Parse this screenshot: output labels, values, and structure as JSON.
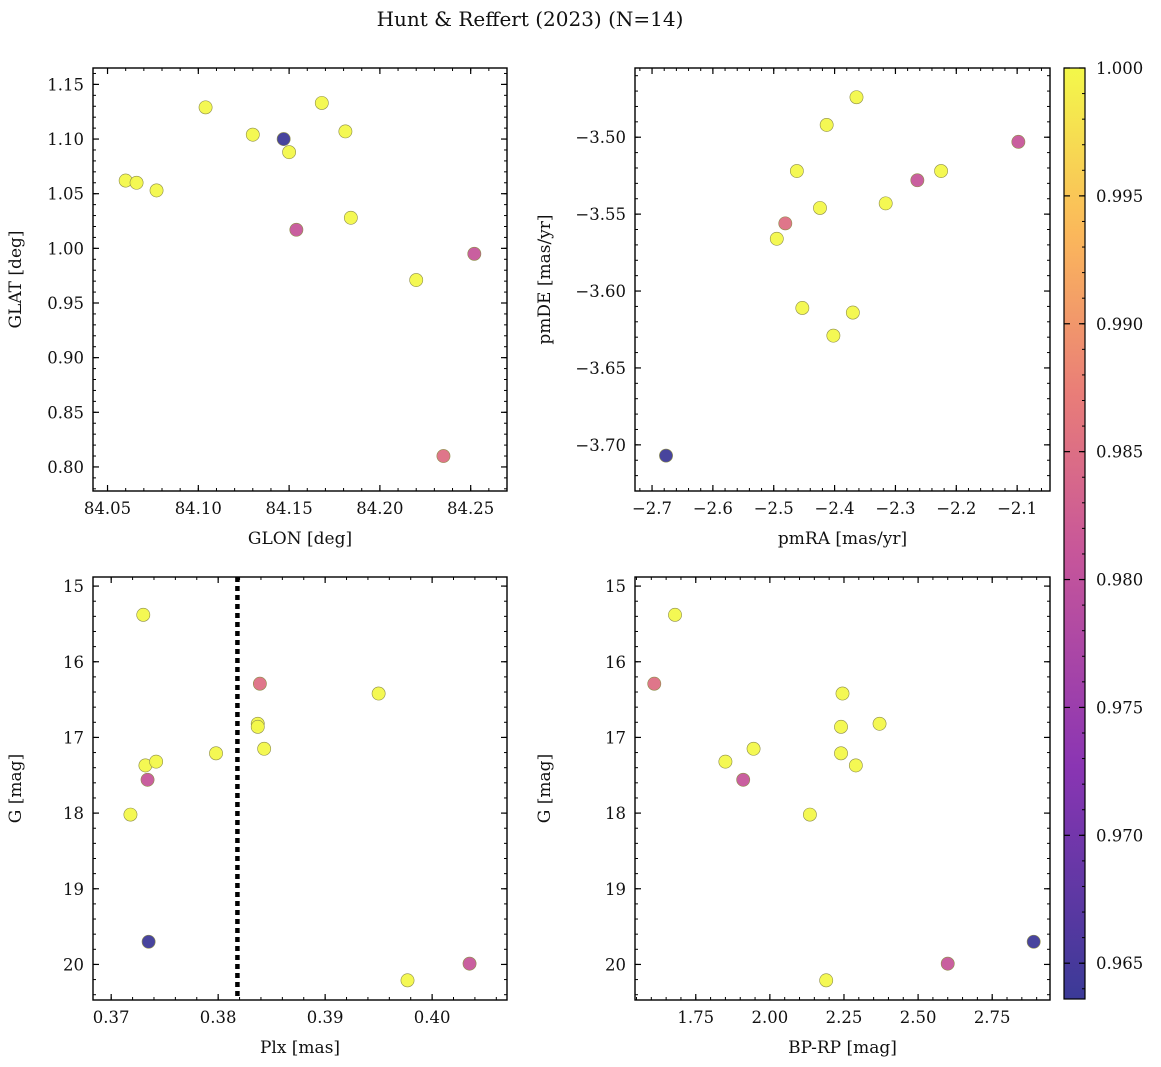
{
  "figure": {
    "title": "Hunt & Reffert (2023) (N=14)"
  },
  "colorbar": {
    "min": 0.9636,
    "max": 1.0,
    "ticks": [
      0.965,
      0.97,
      0.975,
      0.98,
      0.985,
      0.99,
      0.995,
      1.0
    ],
    "tick_labels": [
      "0.965",
      "0.970",
      "0.975",
      "0.980",
      "0.985",
      "0.990",
      "0.995",
      "1.000"
    ],
    "colormap": "plasma"
  },
  "chart_data": [
    {
      "type": "scatter",
      "xlabel": "GLON [deg]",
      "ylabel": "GLAT [deg]",
      "xlim": [
        84.042,
        84.27
      ],
      "ylim": [
        0.778,
        1.165
      ],
      "y_inverted": false,
      "xticks": [
        84.05,
        84.1,
        84.15,
        84.2,
        84.25
      ],
      "xtick_labels": [
        "84.05",
        "84.10",
        "84.15",
        "84.20",
        "84.25"
      ],
      "yticks": [
        0.8,
        0.85,
        0.9,
        0.95,
        1.0,
        1.05,
        1.1,
        1.15
      ],
      "ytick_labels": [
        "0.80",
        "0.85",
        "0.90",
        "0.95",
        "1.00",
        "1.05",
        "1.10",
        "1.15"
      ],
      "points": [
        {
          "x": 84.06,
          "y": 1.062,
          "c": 1.0
        },
        {
          "x": 84.066,
          "y": 1.06,
          "c": 1.0
        },
        {
          "x": 84.077,
          "y": 1.053,
          "c": 1.0
        },
        {
          "x": 84.104,
          "y": 1.129,
          "c": 1.0
        },
        {
          "x": 84.13,
          "y": 1.104,
          "c": 1.0
        },
        {
          "x": 84.147,
          "y": 1.1,
          "c": 0.964
        },
        {
          "x": 84.15,
          "y": 1.088,
          "c": 1.0
        },
        {
          "x": 84.154,
          "y": 1.017,
          "c": 0.981
        },
        {
          "x": 84.168,
          "y": 1.133,
          "c": 1.0
        },
        {
          "x": 84.181,
          "y": 1.107,
          "c": 1.0
        },
        {
          "x": 84.184,
          "y": 1.028,
          "c": 1.0
        },
        {
          "x": 84.22,
          "y": 0.971,
          "c": 1.0
        },
        {
          "x": 84.235,
          "y": 0.81,
          "c": 0.985
        },
        {
          "x": 84.252,
          "y": 0.995,
          "c": 0.981
        }
      ]
    },
    {
      "type": "scatter",
      "xlabel": "pmRA [mas/yr]",
      "ylabel": "pmDE [mas/yr]",
      "xlim": [
        -2.728,
        -2.046
      ],
      "ylim": [
        -3.73,
        -3.455
      ],
      "y_inverted": false,
      "xticks": [
        -2.7,
        -2.6,
        -2.5,
        -2.4,
        -2.3,
        -2.2,
        -2.1
      ],
      "xtick_labels": [
        "−2.7",
        "−2.6",
        "−2.5",
        "−2.4",
        "−2.3",
        "−2.2",
        "−2.1"
      ],
      "yticks": [
        -3.7,
        -3.65,
        -3.6,
        -3.55,
        -3.5
      ],
      "ytick_labels": [
        "−3.70",
        "−3.65",
        "−3.60",
        "−3.55",
        "−3.50"
      ],
      "points": [
        {
          "x": -2.677,
          "y": -3.707,
          "c": 0.964
        },
        {
          "x": -2.495,
          "y": -3.566,
          "c": 1.0
        },
        {
          "x": -2.481,
          "y": -3.556,
          "c": 0.985
        },
        {
          "x": -2.462,
          "y": -3.522,
          "c": 1.0
        },
        {
          "x": -2.453,
          "y": -3.611,
          "c": 1.0
        },
        {
          "x": -2.424,
          "y": -3.546,
          "c": 1.0
        },
        {
          "x": -2.413,
          "y": -3.492,
          "c": 1.0
        },
        {
          "x": -2.402,
          "y": -3.629,
          "c": 1.0
        },
        {
          "x": -2.37,
          "y": -3.614,
          "c": 1.0
        },
        {
          "x": -2.364,
          "y": -3.474,
          "c": 1.0
        },
        {
          "x": -2.316,
          "y": -3.543,
          "c": 1.0
        },
        {
          "x": -2.264,
          "y": -3.528,
          "c": 0.981
        },
        {
          "x": -2.225,
          "y": -3.522,
          "c": 1.0
        },
        {
          "x": -2.098,
          "y": -3.503,
          "c": 0.981
        }
      ]
    },
    {
      "type": "scatter",
      "xlabel": "Plx [mas]",
      "ylabel": "G [mag]",
      "xlim": [
        0.3683,
        0.407
      ],
      "ylim": [
        20.47,
        14.88
      ],
      "y_inverted": true,
      "xticks": [
        0.37,
        0.38,
        0.39,
        0.4
      ],
      "xtick_labels": [
        "0.37",
        "0.38",
        "0.39",
        "0.40"
      ],
      "yticks": [
        15,
        16,
        17,
        18,
        19,
        20
      ],
      "ytick_labels": [
        "15",
        "16",
        "17",
        "18",
        "19",
        "20"
      ],
      "vline": {
        "x": 0.3818,
        "style": "dotted"
      },
      "points": [
        {
          "x": 0.3718,
          "y": 18.02,
          "c": 1.0
        },
        {
          "x": 0.373,
          "y": 15.38,
          "c": 1.0
        },
        {
          "x": 0.3732,
          "y": 17.37,
          "c": 1.0
        },
        {
          "x": 0.3734,
          "y": 17.56,
          "c": 0.981
        },
        {
          "x": 0.3735,
          "y": 19.7,
          "c": 0.964
        },
        {
          "x": 0.3742,
          "y": 17.32,
          "c": 1.0
        },
        {
          "x": 0.3798,
          "y": 17.21,
          "c": 1.0
        },
        {
          "x": 0.3837,
          "y": 16.82,
          "c": 1.0
        },
        {
          "x": 0.3837,
          "y": 16.86,
          "c": 1.0
        },
        {
          "x": 0.3839,
          "y": 16.29,
          "c": 0.985
        },
        {
          "x": 0.3843,
          "y": 17.15,
          "c": 1.0
        },
        {
          "x": 0.395,
          "y": 16.42,
          "c": 1.0
        },
        {
          "x": 0.3977,
          "y": 20.21,
          "c": 1.0
        },
        {
          "x": 0.4035,
          "y": 19.99,
          "c": 0.981
        }
      ]
    },
    {
      "type": "scatter",
      "xlabel": "BP-RP [mag]",
      "ylabel": "G [mag]",
      "xlim": [
        1.545,
        2.945
      ],
      "ylim": [
        20.47,
        14.88
      ],
      "y_inverted": true,
      "xticks": [
        1.75,
        2.0,
        2.25,
        2.5,
        2.75
      ],
      "xtick_labels": [
        "1.75",
        "2.00",
        "2.25",
        "2.50",
        "2.75"
      ],
      "yticks": [
        15,
        16,
        17,
        18,
        19,
        20
      ],
      "ytick_labels": [
        "15",
        "16",
        "17",
        "18",
        "19",
        "20"
      ],
      "points": [
        {
          "x": 1.61,
          "y": 16.29,
          "c": 0.985
        },
        {
          "x": 1.68,
          "y": 15.38,
          "c": 1.0
        },
        {
          "x": 1.85,
          "y": 17.32,
          "c": 1.0
        },
        {
          "x": 1.91,
          "y": 17.56,
          "c": 0.981
        },
        {
          "x": 1.945,
          "y": 17.15,
          "c": 1.0
        },
        {
          "x": 2.135,
          "y": 18.02,
          "c": 1.0
        },
        {
          "x": 2.19,
          "y": 20.21,
          "c": 1.0
        },
        {
          "x": 2.24,
          "y": 16.86,
          "c": 1.0
        },
        {
          "x": 2.24,
          "y": 17.21,
          "c": 1.0
        },
        {
          "x": 2.245,
          "y": 16.42,
          "c": 1.0
        },
        {
          "x": 2.29,
          "y": 17.37,
          "c": 1.0
        },
        {
          "x": 2.37,
          "y": 16.82,
          "c": 1.0
        },
        {
          "x": 2.6,
          "y": 19.99,
          "c": 0.981
        },
        {
          "x": 2.89,
          "y": 19.7,
          "c": 0.964
        }
      ]
    }
  ]
}
